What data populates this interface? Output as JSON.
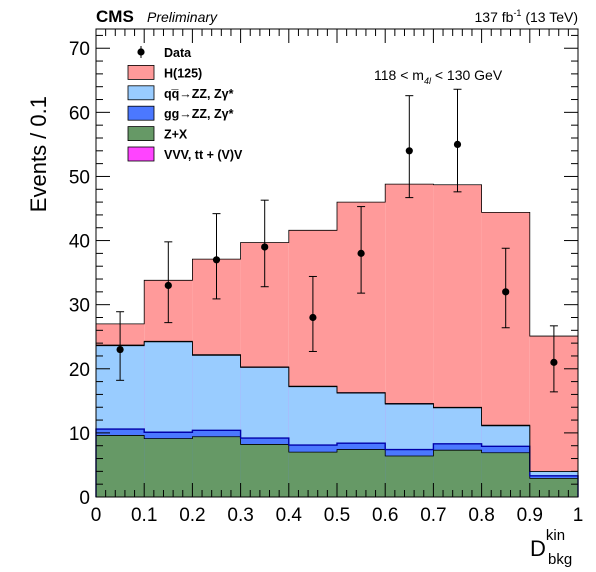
{
  "header": {
    "experiment": "CMS",
    "status": "Preliminary",
    "lumi_value": "137 fb",
    "lumi_exp": "-1",
    "lumi_energy": " (13 TeV)"
  },
  "annotation": {
    "pre": "118 < m",
    "sub": "4l",
    "post": " < 130 GeV"
  },
  "chart_data": {
    "type": "bar",
    "stacked": true,
    "xlabel": "D",
    "xlabel_sup": "kin",
    "xlabel_sub": "bkg",
    "ylabel": "Events / 0.1",
    "xlim": [
      0,
      1
    ],
    "ylim": [
      0,
      73
    ],
    "xticks": [
      "0",
      "0.1",
      "0.2",
      "0.3",
      "0.4",
      "0.5",
      "0.6",
      "0.7",
      "0.8",
      "0.9",
      "1"
    ],
    "yticks": [
      "0",
      "10",
      "20",
      "30",
      "40",
      "50",
      "60",
      "70"
    ],
    "bin_edges": [
      0,
      0.1,
      0.2,
      0.3,
      0.4,
      0.5,
      0.6,
      0.7,
      0.8,
      0.9,
      1.0
    ],
    "series": [
      {
        "name": "Z+X",
        "color": "#669966",
        "values": [
          9.6,
          9.1,
          9.4,
          8.2,
          7.0,
          7.4,
          6.4,
          7.3,
          6.9,
          2.9
        ]
      },
      {
        "name": "gg→ZZ, Zγ*",
        "color": "#4b78ff",
        "values": [
          1.0,
          1.0,
          1.0,
          1.0,
          1.1,
          1.0,
          1.0,
          1.0,
          1.0,
          0.4
        ]
      },
      {
        "name": "qq̄→ZZ, Zγ*",
        "color": "#99ccff",
        "values": [
          13.0,
          14.1,
          11.7,
          11.0,
          9.1,
          7.8,
          7.1,
          5.6,
          3.2,
          0.7
        ]
      },
      {
        "name": "VVV, tt + (V)V",
        "color": "#ff44ff",
        "values": [
          0.1,
          0.1,
          0.1,
          0.1,
          0.1,
          0.1,
          0.1,
          0.1,
          0.1,
          0.0
        ]
      },
      {
        "name": "H(125)",
        "color": "#ff9a9a",
        "values": [
          3.3,
          9.5,
          14.9,
          19.4,
          24.3,
          29.7,
          34.2,
          34.7,
          33.2,
          21.1
        ]
      }
    ],
    "data": {
      "name": "Data",
      "x": [
        0.05,
        0.15,
        0.25,
        0.35,
        0.45,
        0.55,
        0.65,
        0.75,
        0.85,
        0.95
      ],
      "y": [
        23,
        33,
        37,
        39,
        28,
        38,
        54,
        55,
        32,
        21
      ],
      "err_up": [
        5.9,
        6.8,
        7.2,
        7.3,
        6.4,
        7.3,
        8.6,
        8.6,
        6.8,
        5.7
      ],
      "err_down": [
        4.8,
        5.8,
        6.1,
        6.2,
        5.3,
        6.2,
        7.3,
        7.4,
        5.6,
        4.6
      ]
    },
    "legend": {
      "placement": "top-left",
      "entries": [
        "Data",
        "H(125)",
        "qq̅→ZZ, Zγ*",
        "gg→ZZ, Zγ*",
        "Z+X",
        "VVV, tt + (V)V"
      ]
    }
  }
}
